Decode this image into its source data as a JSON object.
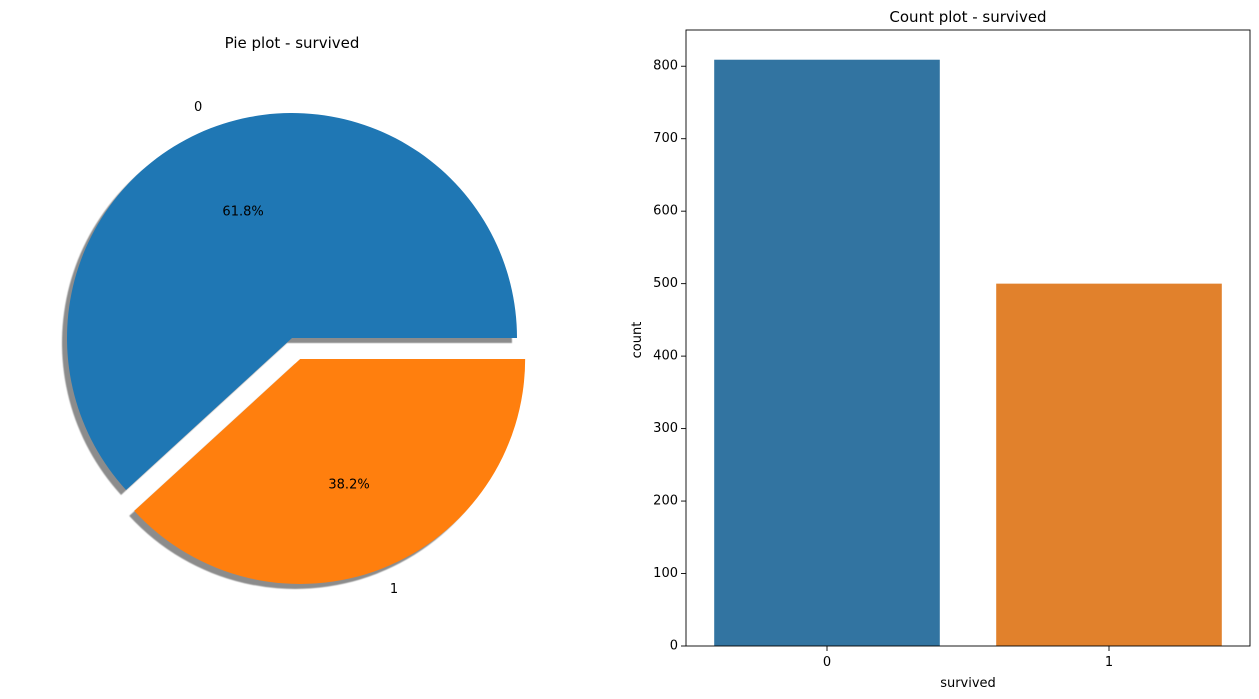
{
  "chart_data": [
    {
      "type": "pie",
      "title": "Pie plot - survived",
      "labels": [
        "0",
        "1"
      ],
      "values": [
        61.8,
        38.2
      ],
      "autopct_labels": [
        "61.8%",
        "38.2%"
      ],
      "colors": [
        "#1f77b4",
        "#ff7f0e"
      ],
      "explode": [
        0,
        0.1
      ],
      "shadow": true
    },
    {
      "type": "bar",
      "title": "Count plot - survived",
      "xlabel": "survived",
      "ylabel": "count",
      "categories": [
        "0",
        "1"
      ],
      "values": [
        809,
        500
      ],
      "colors": [
        "#3274a1",
        "#e1812c"
      ],
      "ylim": [
        0,
        850
      ],
      "yticks": [
        0,
        100,
        200,
        300,
        400,
        500,
        600,
        700,
        800
      ],
      "grid": false
    }
  ]
}
